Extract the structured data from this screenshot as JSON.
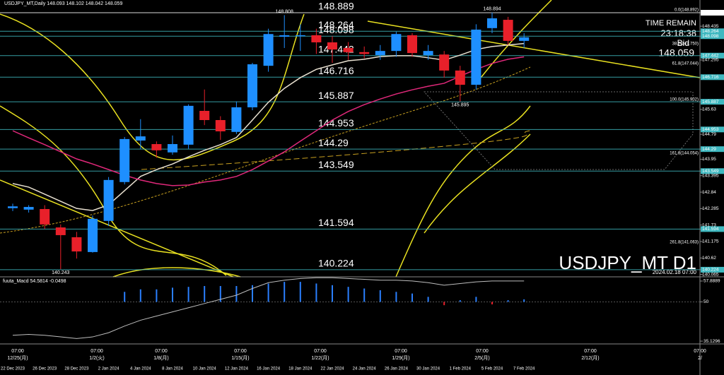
{
  "chart_data": [
    {
      "type": "candlestick",
      "title": "USDJPY_MT,Daily 148.093 148.102 148.042 148.059",
      "symbol_label": "USDJPY_MT D1",
      "timestamp": "2024.02.18 07:00",
      "time_remain_label": "TIME REMAIN",
      "time_remain": "23:18:38",
      "bid_label": "Bid",
      "bid": 148.059,
      "categories": [
        "22 Dec 2023",
        null,
        "26 Dec 2023",
        null,
        "28 Dec 2023",
        null,
        "2 Jan 2024",
        null,
        "4 Jan 2024",
        null,
        "8 Jan 2024",
        null,
        "10 Jan 2024",
        null,
        "12 Jan 2024",
        null,
        "16 Jan 2024",
        null,
        "18 Jan 2024",
        null,
        "22 Jan 2024",
        null,
        "24 Jan 2024",
        null,
        "26 Jan 2024",
        null,
        "30 Jan 2024",
        null,
        "1 Feb 2024",
        null,
        "5 Feb 2024",
        null,
        "7 Feb 2024"
      ],
      "open": [
        142.3,
        142.25,
        142.27,
        141.65,
        141.32,
        140.82,
        141.87,
        143.18,
        144.58,
        144.46,
        144.18,
        144.44,
        145.58,
        145.27,
        144.87,
        145.7,
        147.1,
        148.08,
        148.1,
        148.13,
        147.89,
        147.7,
        147.56,
        147.46,
        147.6,
        148.13,
        147.46,
        147.48,
        146.94,
        146.46,
        148.37,
        148.65,
        147.94
      ],
      "high": [
        142.45,
        142.4,
        142.4,
        141.75,
        141.5,
        142.05,
        143.35,
        144.7,
        145.3,
        144.55,
        144.75,
        145.8,
        146.3,
        145.4,
        145.9,
        147.2,
        148.35,
        148.808,
        148.5,
        148.35,
        148.1,
        147.9,
        147.75,
        147.8,
        148.25,
        148.2,
        147.8,
        147.6,
        147.1,
        148.5,
        148.894,
        148.75,
        148.2
      ],
      "low": [
        142.2,
        142.15,
        141.6,
        140.243,
        140.6,
        140.8,
        141.7,
        143.1,
        144.3,
        144.0,
        144.1,
        144.3,
        145.1,
        144.6,
        144.8,
        145.6,
        146.9,
        147.7,
        147.6,
        147.5,
        147.2,
        147.3,
        147.35,
        147.3,
        147.4,
        147.4,
        147.3,
        146.7,
        145.895,
        146.3,
        148.2,
        147.8,
        147.7
      ],
      "close": [
        142.36,
        142.34,
        141.75,
        141.39,
        140.84,
        141.94,
        143.25,
        144.63,
        144.72,
        144.25,
        144.46,
        145.75,
        145.27,
        144.89,
        145.7,
        147.15,
        148.17,
        148.13,
        148.13,
        147.89,
        147.65,
        147.56,
        147.5,
        147.6,
        148.17,
        147.53,
        147.6,
        146.94,
        146.46,
        148.32,
        148.7,
        147.94,
        148.06
      ],
      "up_color": "#1e8fff",
      "down_color": "#e8202a",
      "series": [
        {
          "color": "#e8e0d0",
          "values": [
            143.13,
            143.01,
            142.77,
            142.53,
            142.29,
            142.22,
            142.41,
            142.89,
            143.37,
            143.6,
            143.79,
            144.03,
            144.25,
            144.44,
            144.68,
            145.27,
            145.87,
            146.34,
            146.7,
            146.98,
            147.13,
            147.27,
            147.32,
            147.41,
            147.44,
            147.44,
            147.37,
            147.29,
            147.46,
            147.65,
            147.75,
            147.8,
            147.85
          ]
        },
        {
          "color": "#e0287a",
          "values": [
            144.91,
            144.67,
            144.44,
            144.2,
            143.96,
            143.79,
            143.6,
            143.41,
            143.25,
            143.13,
            143.06,
            143.08,
            143.18,
            143.25,
            143.37,
            143.6,
            143.89,
            144.2,
            144.56,
            144.91,
            145.27,
            145.56,
            145.79,
            145.98,
            146.15,
            146.29,
            146.41,
            146.51,
            146.75,
            146.98,
            147.18,
            147.32,
            147.4
          ]
        }
      ],
      "levels": [
        148.889,
        148.264,
        148.098,
        147.442,
        146.716,
        145.887,
        144.953,
        144.29,
        143.549,
        141.594,
        140.224
      ],
      "extremes": [
        148.808,
        148.894,
        145.895,
        140.243
      ],
      "fibo_labels": [
        "0.0(148.892)",
        "38.2(147.750)",
        "61.8(147.044)",
        "100.0(145.902)",
        "161.8(144.054)",
        "261.8(141.063)"
      ],
      "ylim": [
        139.984,
        149.318
      ],
      "yticks": [
        148.889,
        148.435,
        148.264,
        148.098,
        147.442,
        147.295,
        146.716,
        145.887,
        145.63,
        144.953,
        144.79,
        144.29,
        143.95,
        143.549,
        143.395,
        142.84,
        142.285,
        141.73,
        141.594,
        141.175,
        140.62,
        140.224,
        140.065
      ],
      "time_axis": [
        "12/25(月)",
        "1/2(火)",
        "1/8(月)",
        "1/15(月)",
        "1/22(月)",
        "1/29(月)",
        "2/5(月)",
        "2/12(月)",
        "2/"
      ],
      "time_label": "07:00"
    },
    {
      "type": "macd",
      "title": "fuuta_Macd 54.5814 -0.0498",
      "color": "#2a7fff",
      "values": [
        null,
        null,
        null,
        null,
        null,
        null,
        null,
        53.79,
        54.74,
        54.74,
        55.37,
        55.69,
        56.0,
        56.0,
        56.0,
        56.32,
        56.95,
        57.58,
        57.58,
        56.95,
        56.32,
        55.69,
        55.06,
        54.42,
        53.79,
        53.16,
        51.9,
        48.74,
        50.63,
        51.9,
        49.05,
        50.63,
        50.95
      ],
      "signal": {
        "color": "#bdbdbd",
        "values": [
          37.36,
          37.68,
          37.36,
          36.73,
          36.1,
          36.73,
          38.31,
          40.84,
          43.05,
          44.63,
          46.21,
          47.79,
          49.37,
          50.95,
          52.53,
          55.06,
          57.27,
          58.22,
          58.85,
          59.16,
          59.16,
          58.85,
          58.53,
          58.22,
          58.22,
          57.9,
          57.27,
          56.32,
          56.95,
          57.58,
          57.9,
          57.9,
          57.9
        ]
      },
      "ylim": [
        34.07,
        59.48
      ],
      "yticks": [
        57.8889,
        50,
        35.1296
      ]
    }
  ]
}
